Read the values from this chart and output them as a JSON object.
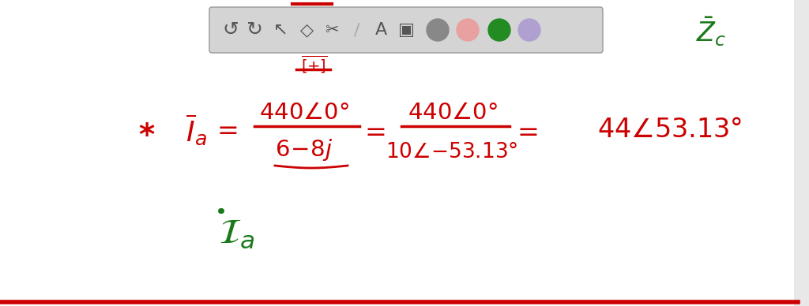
{
  "background_color": "#ffffff",
  "red_color": "#cc0000",
  "green_color": "#1a7a1a",
  "fig_width": 10.24,
  "fig_height": 3.88,
  "dpi": 100
}
